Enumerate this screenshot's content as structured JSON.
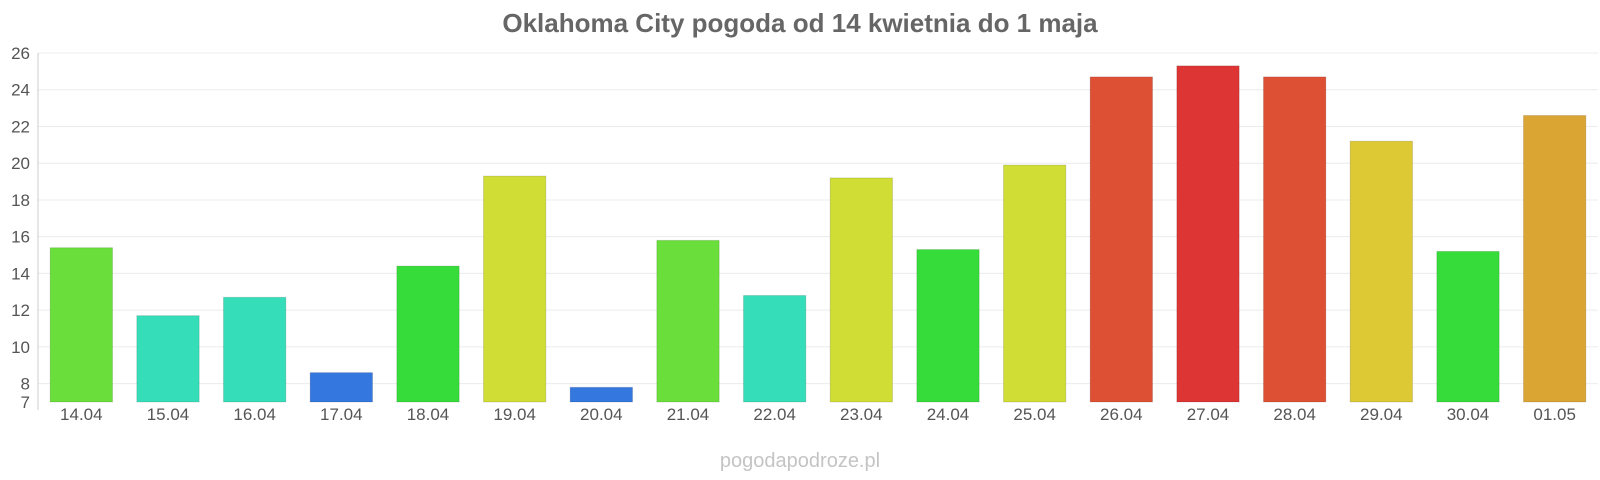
{
  "title": "Oklahoma City pogoda od 14 kwietnia do 1 maja",
  "watermark": "pogodapodroze.pl",
  "chart_data": {
    "type": "bar",
    "title": "Oklahoma City pogoda od 14 kwietnia do 1 maja",
    "xlabel": "",
    "ylabel": "",
    "ylim": [
      7,
      26
    ],
    "yticks": [
      7,
      8,
      10,
      12,
      14,
      16,
      18,
      20,
      22,
      24,
      26
    ],
    "grid": true,
    "legend": "none",
    "categories": [
      "14.04",
      "15.04",
      "16.04",
      "17.04",
      "18.04",
      "19.04",
      "20.04",
      "21.04",
      "22.04",
      "23.04",
      "24.04",
      "25.04",
      "26.04",
      "27.04",
      "28.04",
      "29.04",
      "30.04",
      "01.05"
    ],
    "values": [
      15.4,
      11.7,
      12.7,
      8.6,
      14.4,
      19.3,
      7.8,
      15.8,
      12.8,
      19.2,
      15.3,
      19.9,
      24.7,
      25.3,
      24.7,
      21.2,
      15.2,
      22.6
    ],
    "colors": [
      "#6ade3a",
      "#36ddb9",
      "#36ddb9",
      "#3477df",
      "#36dd3a",
      "#cfdd34",
      "#3477df",
      "#6ade3a",
      "#36ddb9",
      "#cfdd34",
      "#36dd3a",
      "#cfdd34",
      "#de5034",
      "#dd3434",
      "#de5034",
      "#dcc934",
      "#36dd3a",
      "#dba534"
    ]
  }
}
